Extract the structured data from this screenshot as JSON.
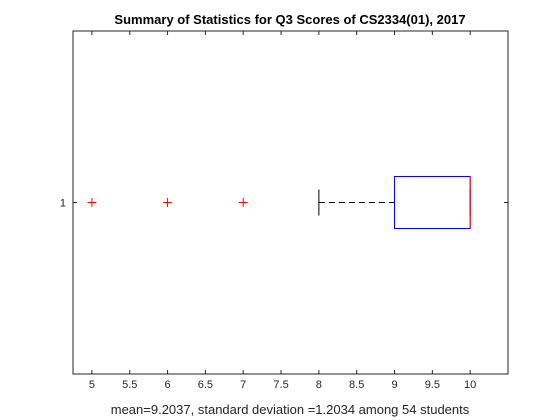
{
  "chart_data": {
    "type": "boxplot",
    "orientation": "horizontal",
    "title": "Summary of Statistics for Q3 Scores of CS2334(01), 2017",
    "xlabel": "mean=9.2037, standard deviation =1.2034 among 54 students",
    "ylabel": "",
    "xlim": [
      4.75,
      10.5
    ],
    "ylim": [
      0.5,
      1.5
    ],
    "x_ticks": [
      5,
      5.5,
      6,
      6.5,
      7,
      7.5,
      8,
      8.5,
      9,
      9.5,
      10
    ],
    "x_tick_labels": [
      "5",
      "5.5",
      "6",
      "6.5",
      "7",
      "7.5",
      "8",
      "8.5",
      "9",
      "9.5",
      "10"
    ],
    "y_ticks": [
      1
    ],
    "y_tick_labels": [
      "1"
    ],
    "grid": false,
    "boxes": [
      {
        "position": 1,
        "lower_whisker": 8,
        "q1": 9,
        "median": 10,
        "q3": 10,
        "upper_whisker": 10,
        "outliers": [
          5,
          6,
          7
        ]
      }
    ],
    "colors": {
      "box": "#0000ff",
      "median": "#ff0000",
      "whisker": "#000000",
      "outlier": "#ff0000",
      "axes": "#262626"
    }
  }
}
